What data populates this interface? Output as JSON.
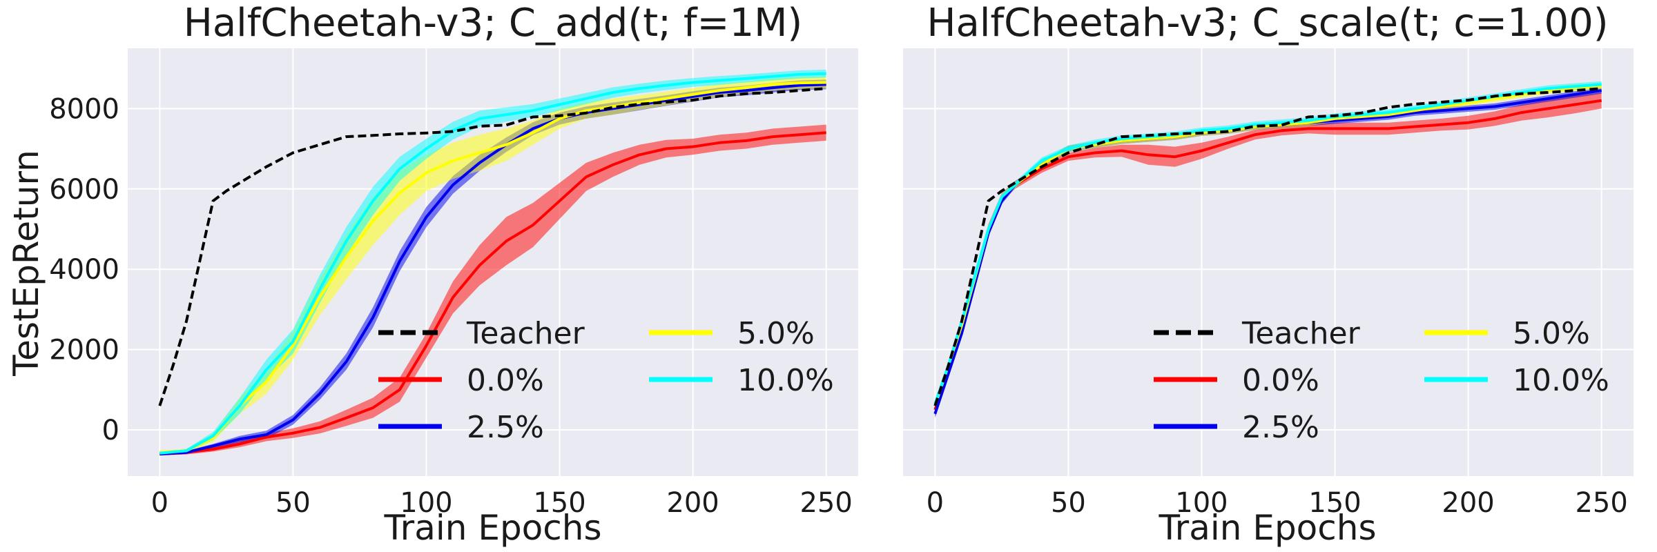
{
  "chart_data": [
    {
      "type": "line",
      "title": "HalfCheetah-v3; C_add(t; f=1M)",
      "xlabel": "Train Epochs",
      "ylabel": "TestEpReturn",
      "xlim": [
        -12,
        262
      ],
      "ylim": [
        -1150,
        9500
      ],
      "xticks": [
        0,
        50,
        100,
        150,
        200,
        250
      ],
      "yticks": [
        0,
        2000,
        4000,
        6000,
        8000
      ],
      "xtick_labels": [
        "0",
        "50",
        "100",
        "150",
        "200",
        "250"
      ],
      "ytick_labels": [
        "0",
        "2000",
        "4000",
        "6000",
        "8000"
      ],
      "grid": true,
      "legend_position": "lower-right",
      "series": [
        {
          "name": "Teacher",
          "color": "#000000",
          "dash": true,
          "x": [
            0,
            5,
            10,
            15,
            20,
            25,
            30,
            40,
            50,
            60,
            70,
            80,
            90,
            100,
            110,
            120,
            130,
            140,
            150,
            160,
            170,
            180,
            190,
            200,
            210,
            220,
            230,
            240,
            250
          ],
          "y": [
            600,
            1600,
            2700,
            4200,
            5700,
            5950,
            6150,
            6550,
            6900,
            7100,
            7300,
            7330,
            7370,
            7390,
            7430,
            7560,
            7590,
            7790,
            7820,
            7890,
            8030,
            8110,
            8160,
            8210,
            8310,
            8370,
            8400,
            8450,
            8500
          ],
          "band": [
            0,
            0,
            0,
            0,
            0,
            0,
            0,
            0,
            0,
            0,
            0,
            0,
            0,
            0,
            0,
            0,
            0,
            0,
            0,
            0,
            0,
            0,
            0,
            0,
            0,
            0,
            0,
            0,
            0
          ]
        },
        {
          "name": "0.0%",
          "color": "#ff0000",
          "dash": false,
          "x": [
            0,
            10,
            20,
            30,
            40,
            50,
            60,
            70,
            80,
            90,
            100,
            110,
            120,
            130,
            140,
            150,
            160,
            170,
            180,
            190,
            200,
            210,
            220,
            230,
            240,
            250
          ],
          "y": [
            -600,
            -560,
            -480,
            -350,
            -180,
            -80,
            60,
            300,
            550,
            1000,
            2100,
            3300,
            4100,
            4700,
            5100,
            5700,
            6300,
            6600,
            6850,
            7000,
            7050,
            7150,
            7200,
            7300,
            7350,
            7400
          ],
          "band": [
            40,
            50,
            60,
            80,
            100,
            120,
            150,
            200,
            250,
            300,
            300,
            400,
            500,
            600,
            550,
            450,
            350,
            300,
            250,
            220,
            200,
            200,
            200,
            200,
            200,
            200
          ]
        },
        {
          "name": "2.5%",
          "color": "#0000ee",
          "dash": false,
          "x": [
            0,
            10,
            20,
            30,
            40,
            50,
            60,
            70,
            80,
            90,
            100,
            110,
            120,
            130,
            140,
            150,
            160,
            170,
            180,
            190,
            200,
            210,
            220,
            230,
            240,
            250
          ],
          "y": [
            -600,
            -560,
            -400,
            -230,
            -120,
            250,
            900,
            1700,
            2800,
            4200,
            5300,
            6100,
            6650,
            7100,
            7500,
            7750,
            7900,
            8000,
            8100,
            8200,
            8300,
            8400,
            8450,
            8520,
            8580,
            8600
          ],
          "band": [
            30,
            40,
            50,
            80,
            100,
            120,
            150,
            200,
            250,
            250,
            250,
            220,
            200,
            180,
            160,
            150,
            150,
            150,
            140,
            130,
            130,
            120,
            120,
            120,
            120,
            120
          ]
        },
        {
          "name": "5.0%",
          "color": "#ffff00",
          "dash": false,
          "x": [
            0,
            10,
            20,
            30,
            40,
            50,
            60,
            70,
            80,
            90,
            100,
            110,
            120,
            130,
            140,
            150,
            160,
            170,
            180,
            190,
            200,
            210,
            220,
            230,
            240,
            250
          ],
          "y": [
            -560,
            -520,
            -200,
            600,
            1200,
            2100,
            3300,
            4300,
            5200,
            5900,
            6400,
            6700,
            6900,
            7100,
            7400,
            7750,
            7950,
            8050,
            8150,
            8250,
            8350,
            8450,
            8520,
            8600,
            8640,
            8650
          ],
          "band": [
            40,
            50,
            100,
            200,
            300,
            350,
            450,
            550,
            600,
            550,
            450,
            450,
            450,
            400,
            300,
            250,
            200,
            200,
            180,
            170,
            160,
            160,
            150,
            150,
            150,
            150
          ]
        },
        {
          "name": "10.0%",
          "color": "#00ffff",
          "dash": false,
          "x": [
            0,
            10,
            20,
            30,
            40,
            50,
            60,
            70,
            80,
            90,
            100,
            110,
            120,
            130,
            140,
            150,
            160,
            170,
            180,
            190,
            200,
            210,
            220,
            230,
            240,
            250
          ],
          "y": [
            -580,
            -520,
            -150,
            600,
            1500,
            2200,
            3500,
            4700,
            5700,
            6500,
            7000,
            7450,
            7750,
            7850,
            7950,
            8100,
            8250,
            8400,
            8500,
            8580,
            8650,
            8700,
            8750,
            8800,
            8850,
            8870
          ],
          "band": [
            30,
            40,
            100,
            200,
            250,
            300,
            350,
            350,
            350,
            300,
            250,
            220,
            200,
            180,
            160,
            150,
            140,
            130,
            120,
            120,
            110,
            110,
            100,
            100,
            100,
            100
          ]
        }
      ]
    },
    {
      "type": "line",
      "title": "HalfCheetah-v3; C_scale(t; c=1.00)",
      "xlabel": "Train Epochs",
      "ylabel": "",
      "xlim": [
        -12,
        262
      ],
      "ylim": [
        -1150,
        9500
      ],
      "xticks": [
        0,
        50,
        100,
        150,
        200,
        250
      ],
      "yticks": [
        0,
        2000,
        4000,
        6000,
        8000
      ],
      "xtick_labels": [
        "0",
        "50",
        "100",
        "150",
        "200",
        "250"
      ],
      "ytick_labels": [],
      "grid": true,
      "legend_position": "lower-right",
      "series": [
        {
          "name": "Teacher",
          "color": "#000000",
          "dash": true,
          "x": [
            0,
            5,
            10,
            15,
            20,
            25,
            30,
            40,
            50,
            60,
            70,
            80,
            90,
            100,
            110,
            120,
            130,
            140,
            150,
            160,
            170,
            180,
            190,
            200,
            210,
            220,
            230,
            240,
            250
          ],
          "y": [
            600,
            1600,
            2700,
            4200,
            5700,
            5950,
            6150,
            6550,
            6900,
            7100,
            7300,
            7330,
            7370,
            7390,
            7430,
            7560,
            7590,
            7790,
            7820,
            7890,
            8030,
            8110,
            8160,
            8210,
            8310,
            8370,
            8400,
            8450,
            8500
          ],
          "band": [
            0,
            0,
            0,
            0,
            0,
            0,
            0,
            0,
            0,
            0,
            0,
            0,
            0,
            0,
            0,
            0,
            0,
            0,
            0,
            0,
            0,
            0,
            0,
            0,
            0,
            0,
            0,
            0,
            0
          ]
        },
        {
          "name": "0.0%",
          "color": "#ff0000",
          "dash": false,
          "x": [
            0,
            5,
            10,
            20,
            25,
            30,
            40,
            50,
            60,
            70,
            80,
            90,
            100,
            110,
            120,
            130,
            140,
            150,
            160,
            170,
            180,
            190,
            200,
            210,
            220,
            230,
            240,
            250
          ],
          "y": [
            500,
            1500,
            2600,
            5000,
            5800,
            6100,
            6500,
            6800,
            6900,
            6950,
            6850,
            6800,
            6950,
            7150,
            7350,
            7450,
            7500,
            7500,
            7500,
            7500,
            7550,
            7600,
            7650,
            7750,
            7900,
            8000,
            8100,
            8200
          ],
          "band": [
            150,
            150,
            150,
            120,
            100,
            100,
            100,
            100,
            120,
            150,
            250,
            250,
            200,
            150,
            120,
            120,
            120,
            150,
            150,
            150,
            150,
            150,
            170,
            180,
            200,
            220,
            220,
            200
          ]
        },
        {
          "name": "2.5%",
          "color": "#0000ee",
          "dash": false,
          "x": [
            0,
            5,
            10,
            20,
            25,
            30,
            40,
            50,
            60,
            70,
            80,
            90,
            100,
            110,
            120,
            130,
            140,
            150,
            160,
            170,
            180,
            190,
            200,
            210,
            220,
            230,
            240,
            250
          ],
          "y": [
            400,
            1400,
            2400,
            4900,
            5700,
            6100,
            6600,
            7000,
            7100,
            7200,
            7250,
            7300,
            7400,
            7450,
            7550,
            7600,
            7650,
            7700,
            7750,
            7800,
            7900,
            7950,
            8000,
            8050,
            8150,
            8250,
            8350,
            8450
          ],
          "band": [
            100,
            100,
            100,
            80,
            80,
            80,
            80,
            80,
            80,
            80,
            80,
            80,
            80,
            80,
            80,
            80,
            80,
            80,
            80,
            80,
            80,
            80,
            80,
            80,
            80,
            80,
            80,
            80
          ]
        },
        {
          "name": "5.0%",
          "color": "#ffff00",
          "dash": false,
          "x": [
            0,
            5,
            10,
            20,
            25,
            30,
            40,
            50,
            60,
            70,
            80,
            90,
            100,
            110,
            120,
            130,
            140,
            150,
            160,
            170,
            180,
            190,
            200,
            210,
            220,
            230,
            240,
            250
          ],
          "y": [
            600,
            1600,
            2600,
            5000,
            5800,
            6100,
            6600,
            7000,
            7100,
            7200,
            7250,
            7300,
            7400,
            7450,
            7550,
            7600,
            7650,
            7750,
            7800,
            7850,
            7950,
            8050,
            8150,
            8250,
            8350,
            8450,
            8520,
            8550
          ],
          "band": [
            100,
            100,
            100,
            80,
            80,
            80,
            80,
            80,
            80,
            80,
            80,
            80,
            80,
            80,
            80,
            80,
            80,
            80,
            80,
            80,
            80,
            80,
            80,
            80,
            80,
            80,
            80,
            80
          ]
        },
        {
          "name": "10.0%",
          "color": "#00ffff",
          "dash": false,
          "x": [
            0,
            5,
            10,
            20,
            25,
            30,
            40,
            50,
            60,
            70,
            80,
            90,
            100,
            110,
            120,
            130,
            140,
            150,
            160,
            170,
            180,
            190,
            200,
            210,
            220,
            230,
            240,
            250
          ],
          "y": [
            650,
            1600,
            2700,
            5000,
            5800,
            6100,
            6700,
            7000,
            7150,
            7250,
            7300,
            7350,
            7450,
            7500,
            7600,
            7650,
            7700,
            7800,
            7850,
            7900,
            8000,
            8100,
            8200,
            8300,
            8400,
            8500,
            8550,
            8600
          ],
          "band": [
            100,
            100,
            100,
            80,
            80,
            80,
            80,
            80,
            80,
            80,
            80,
            80,
            80,
            80,
            80,
            80,
            80,
            80,
            80,
            80,
            80,
            80,
            80,
            80,
            80,
            80,
            80,
            80
          ]
        }
      ]
    }
  ]
}
